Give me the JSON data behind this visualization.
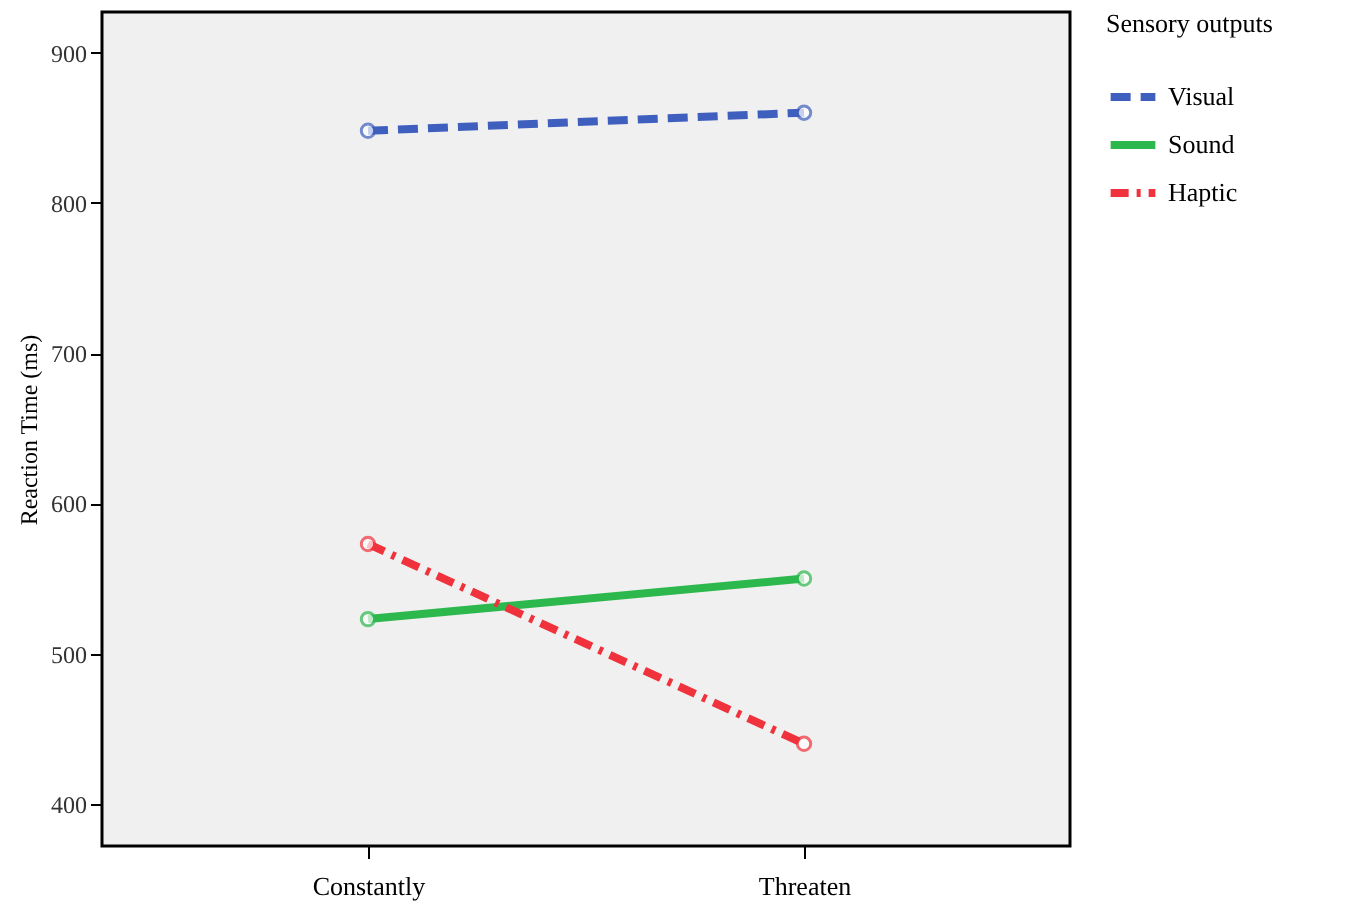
{
  "chart_data": {
    "type": "line",
    "ylabel": "Reaction Time (ms)",
    "legend_title": "Sensory outputs",
    "categories": [
      "Constantly",
      "Threaten"
    ],
    "series": [
      {
        "name": "Visual",
        "color": "#3f5fbf",
        "line_style": "dashed",
        "values": [
          848,
          860
        ]
      },
      {
        "name": "Sound",
        "color": "#2db84d",
        "line_style": "solid",
        "values": [
          523,
          550
        ]
      },
      {
        "name": "Haptic",
        "color": "#f0323c",
        "line_style": "dotted",
        "values": [
          573,
          440
        ]
      }
    ],
    "ylim": [
      372,
      927
    ],
    "yticks": [
      400,
      500,
      600,
      700,
      800,
      900
    ],
    "grid": false,
    "legend": "top right",
    "marker": "circle"
  }
}
